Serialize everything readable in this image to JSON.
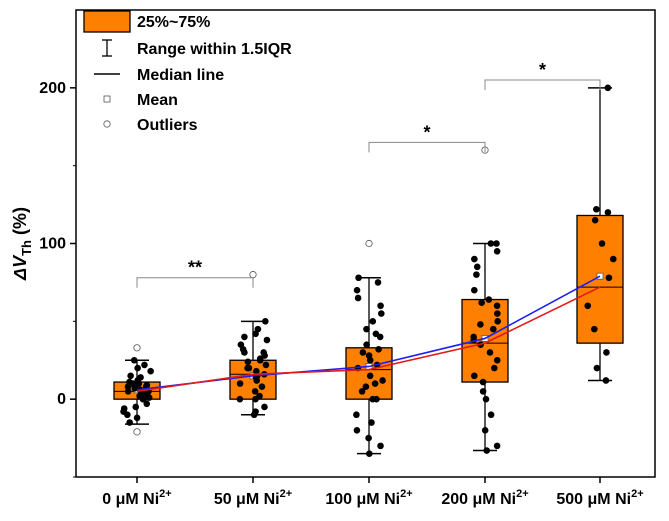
{
  "chart_data": {
    "type": "box",
    "categories": [
      "0 μM Ni",
      "50 μM Ni",
      "100 μM Ni",
      "200 μM Ni",
      "500 μM Ni"
    ],
    "category_superscript": "2+",
    "ylabel": "ΔV",
    "ylabel_subscript": "Th",
    "ylabel_unit": " (%)",
    "ylim": [
      -50,
      250
    ],
    "yticks": [
      0,
      100,
      200
    ],
    "grid": false,
    "legend_position": "top-left",
    "legend": [
      "25%~75%",
      "Range within 1.5IQR",
      "Median line",
      "Mean",
      "Outliers"
    ],
    "colors": {
      "box": "#ff8000",
      "mean_line": "#1e1ef0",
      "median_line": "#e21a1a"
    },
    "boxes": [
      {
        "q1": 0,
        "median": 5,
        "q3": 11,
        "whisker_low": -16,
        "whisker_high": 25,
        "mean": 6,
        "outliers": [
          33,
          -21
        ]
      },
      {
        "q1": 0,
        "median": 16,
        "q3": 25,
        "whisker_low": -10,
        "whisker_high": 50,
        "mean": 15,
        "outliers": [
          80
        ]
      },
      {
        "q1": 0,
        "median": 19,
        "q3": 33,
        "whisker_low": -35,
        "whisker_high": 78,
        "mean": 21,
        "outliers": [
          100
        ]
      },
      {
        "q1": 11,
        "median": 36,
        "q3": 64,
        "whisker_low": -33,
        "whisker_high": 100,
        "mean": 39,
        "outliers": [
          160
        ]
      },
      {
        "q1": 36,
        "median": 72,
        "q3": 118,
        "whisker_low": 12,
        "whisker_high": 200,
        "mean": 79,
        "outliers": []
      }
    ],
    "points": [
      [
        5,
        0,
        10,
        -5,
        15,
        8,
        3,
        -12,
        20,
        12,
        -8,
        2,
        6,
        25,
        -3,
        10,
        7,
        -15,
        18,
        0,
        4,
        9,
        -6,
        14,
        1,
        11,
        22,
        -10,
        5,
        8
      ],
      [
        0,
        10,
        20,
        30,
        40,
        -5,
        15,
        25,
        35,
        45,
        50,
        5,
        -10,
        12,
        18,
        22,
        28,
        0,
        8,
        16,
        24,
        32,
        38,
        42,
        2,
        14,
        26,
        -8,
        20,
        30
      ],
      [
        0,
        -35,
        -30,
        10,
        20,
        30,
        40,
        50,
        60,
        70,
        78,
        -20,
        -10,
        5,
        15,
        25,
        35,
        45,
        55,
        65,
        75,
        0,
        12,
        22,
        32,
        -15,
        8,
        28,
        -25,
        42
      ],
      [
        -33,
        -30,
        -10,
        0,
        11,
        20,
        30,
        40,
        50,
        60,
        64,
        70,
        80,
        90,
        100,
        100,
        25,
        35,
        45,
        55,
        15,
        -20,
        5,
        38,
        48,
        62,
        85,
        95
      ],
      [
        12,
        20,
        30,
        45,
        60,
        78,
        90,
        100,
        115,
        120,
        122,
        200
      ]
    ],
    "significance": [
      {
        "from": 0,
        "to": 1,
        "y": 78,
        "label": "**"
      },
      {
        "from": 2,
        "to": 3,
        "y": 165,
        "label": "*"
      },
      {
        "from": 3,
        "to": 4,
        "y": 205,
        "label": "*"
      }
    ]
  }
}
